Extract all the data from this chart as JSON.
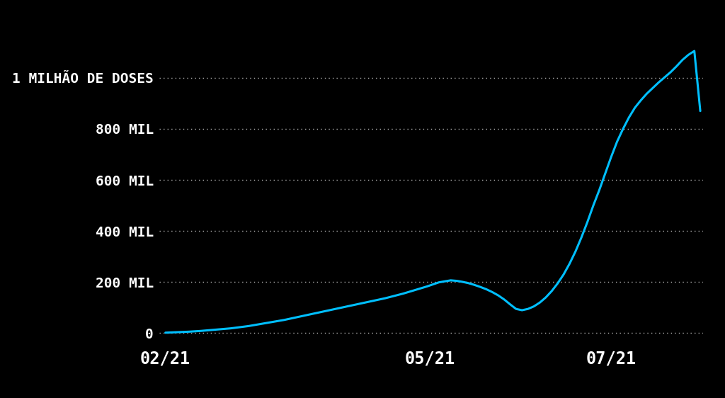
{
  "background_color": "#000000",
  "line_color": "#00BFFF",
  "line_width": 2.2,
  "text_color": "#FFFFFF",
  "grid_color": "#FFFFFF",
  "ytick_labels": [
    "0",
    "200 MIL",
    "400 MIL",
    "600 MIL",
    "800 MIL",
    "1 MILHÃO DE DOSES"
  ],
  "ytick_values": [
    0,
    200000,
    400000,
    600000,
    800000,
    1000000
  ],
  "xtick_labels": [
    "02/21",
    "05/21",
    "07/21"
  ],
  "ylim": [
    -20000,
    1180000
  ],
  "font_size_yticks": 14,
  "font_size_xticks": 17,
  "start_day": 0,
  "total_days": 181,
  "xtick_days": [
    0,
    89,
    150
  ],
  "series_days": [
    0,
    2,
    4,
    6,
    8,
    10,
    12,
    14,
    16,
    18,
    20,
    22,
    24,
    26,
    28,
    30,
    32,
    34,
    36,
    38,
    40,
    42,
    44,
    46,
    48,
    50,
    52,
    54,
    56,
    58,
    60,
    62,
    64,
    66,
    68,
    70,
    72,
    74,
    76,
    78,
    80,
    82,
    84,
    86,
    88,
    90,
    92,
    94,
    96,
    98,
    100,
    102,
    104,
    106,
    108,
    110,
    112,
    114,
    116,
    118,
    120,
    122,
    124,
    126,
    128,
    130,
    132,
    134,
    136,
    138,
    140,
    142,
    144,
    146,
    148,
    150,
    152,
    154,
    156,
    158,
    160,
    162,
    164,
    166,
    168,
    170,
    172,
    174,
    176,
    178,
    180
  ],
  "series_values": [
    2000,
    3000,
    4000,
    5000,
    6000,
    7500,
    9000,
    11000,
    13000,
    15000,
    17000,
    19000,
    22000,
    25000,
    28000,
    32000,
    36000,
    40000,
    44000,
    48000,
    52000,
    57000,
    62000,
    67000,
    72000,
    77000,
    82000,
    87000,
    92000,
    97000,
    102000,
    107000,
    112000,
    117000,
    122000,
    127000,
    132000,
    137000,
    143000,
    149000,
    155000,
    162000,
    169000,
    176000,
    183000,
    191000,
    199000,
    203000,
    207000,
    205000,
    201000,
    196000,
    189000,
    181000,
    172000,
    161000,
    148000,
    132000,
    113000,
    95000,
    90000,
    95000,
    105000,
    120000,
    140000,
    165000,
    195000,
    230000,
    272000,
    320000,
    375000,
    435000,
    500000,
    560000,
    625000,
    690000,
    750000,
    800000,
    845000,
    883000,
    912000,
    938000,
    960000,
    982000,
    1002000,
    1022000,
    1045000,
    1070000,
    1090000,
    1105000,
    870000
  ]
}
